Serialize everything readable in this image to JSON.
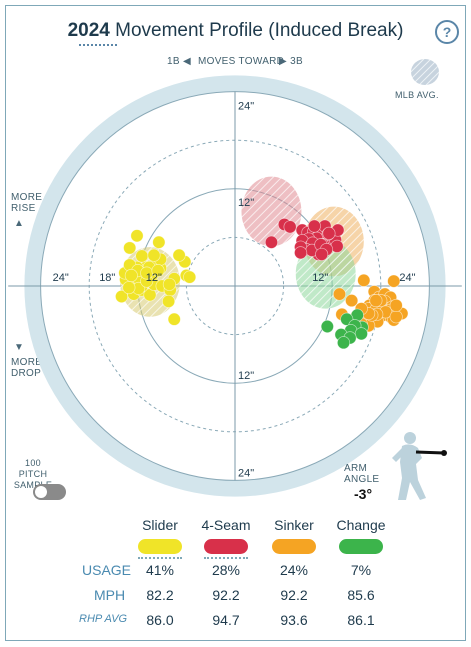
{
  "header": {
    "year": "2024",
    "title": "Movement Profile (Induced Break)",
    "help_glyph": "?"
  },
  "direction": {
    "left_label": "1B",
    "center_label": "MOVES TOWARD",
    "right_label": "3B",
    "left_arrow": "◀",
    "right_arrow": "▶"
  },
  "side_labels": {
    "more_rise_1": "MORE",
    "more_rise_2": "RISE",
    "up_arrow": "▲",
    "down_arrow": "▼",
    "more_drop_1": "MORE",
    "more_drop_2": "DROP"
  },
  "mlb_avg_label": "MLB AVG.",
  "sample_toggle": {
    "label_1": "100 PITCH",
    "label_2": "SAMPLE",
    "on": false
  },
  "arm_angle": {
    "label_1": "ARM",
    "label_2": "ANGLE",
    "value": "-3°"
  },
  "chart_data": {
    "type": "scatter",
    "title": "",
    "units": "inches",
    "ring_labels": {
      "top_outer": "24\"",
      "top_inner": "12\"",
      "bottom_inner": "12\"",
      "bottom_outer": "24\"",
      "left_outer": "24\"",
      "left_mid": "18\"",
      "left_inner": "12\"",
      "right_inner": "12\"",
      "right_outer": "24\""
    },
    "series": [
      {
        "name": "Slider",
        "color": "#f0e428",
        "avg_color": "#d7c970",
        "mlb_avg": {
          "x": -10.5,
          "y": 0.5
        },
        "points": [
          [
            -14,
            -1.3
          ],
          [
            -12.5,
            -1
          ],
          [
            -11.5,
            -0.5
          ],
          [
            -10.5,
            -1.1
          ],
          [
            -12.9,
            0.3
          ],
          [
            -11.5,
            0
          ],
          [
            -10,
            0.2
          ],
          [
            -9,
            0
          ],
          [
            -8,
            -0.5
          ],
          [
            -13.5,
            0.8
          ],
          [
            -12,
            1
          ],
          [
            -10.2,
            1.4
          ],
          [
            -11,
            2.3
          ],
          [
            -9.2,
            2.2
          ],
          [
            -13,
            1.8
          ],
          [
            -7.5,
            0.9
          ],
          [
            -6,
            1.3
          ],
          [
            -8.2,
            -1.9
          ],
          [
            -7.5,
            -4.1
          ],
          [
            -13.6,
            1.6
          ],
          [
            -9.8,
            2.8
          ],
          [
            -12.1,
            2.3
          ],
          [
            -13,
            2.6
          ],
          [
            -10.6,
            2.3
          ],
          [
            -13,
            4.7
          ],
          [
            -11.5,
            3.7
          ],
          [
            -9.2,
            3.3
          ],
          [
            -6.2,
            3
          ],
          [
            -10,
            3.8
          ],
          [
            -12.1,
            6.2
          ],
          [
            -9.4,
            5.4
          ],
          [
            -6.9,
            3.8
          ],
          [
            -5.6,
            1.1
          ],
          [
            -8.1,
            0.2
          ],
          [
            -11.9,
            -0.3
          ],
          [
            -13.1,
            -0.2
          ],
          [
            -10.9,
            0.6
          ],
          [
            -12,
            1.9
          ],
          [
            -10.9,
            1.6
          ],
          [
            -12.8,
            1.3
          ],
          [
            -9.5,
            1.9
          ]
        ]
      },
      {
        "name": "4-Seam",
        "color": "#d8304a",
        "avg_color": "#e08a92",
        "mlb_avg": {
          "x": 4.5,
          "y": 9.2
        },
        "points": [
          [
            6.1,
            7.6
          ],
          [
            6.8,
            7.3
          ],
          [
            8.3,
            6.9
          ],
          [
            9,
            6.6
          ],
          [
            9.7,
            6.7
          ],
          [
            10.4,
            6.9
          ],
          [
            11.1,
            7.4
          ],
          [
            10.1,
            5.9
          ],
          [
            9.1,
            5.8
          ],
          [
            8.3,
            5.6
          ],
          [
            9.4,
            5
          ],
          [
            10,
            4.8
          ],
          [
            11.1,
            4.9
          ],
          [
            11.9,
            5.7
          ],
          [
            12.4,
            5.7
          ],
          [
            11.5,
            6.4
          ],
          [
            10.8,
            5.1
          ],
          [
            9.6,
            5.3
          ],
          [
            8.8,
            4.5
          ],
          [
            8.1,
            4.8
          ],
          [
            10.3,
            3.9
          ],
          [
            12.7,
            6.9
          ],
          [
            11.6,
            6.5
          ],
          [
            9.5,
            4.4
          ],
          [
            4.5,
            5.4
          ],
          [
            8.1,
            4.1
          ],
          [
            10.6,
            5.1
          ],
          [
            12.6,
            4.9
          ],
          [
            11.3,
            4.5
          ],
          [
            10.7,
            3.9
          ],
          [
            9.8,
            7.4
          ]
        ]
      },
      {
        "name": "Sinker",
        "color": "#f5a423",
        "avg_color": "#efb060",
        "mlb_avg": {
          "x": 12.2,
          "y": 5.5
        },
        "points": [
          [
            15.9,
            0.7
          ],
          [
            19.6,
            0.6
          ],
          [
            12.9,
            -1
          ],
          [
            17.2,
            -0.7
          ],
          [
            17.8,
            -1.4
          ],
          [
            18.5,
            -1
          ],
          [
            19.2,
            -1.4
          ],
          [
            17.2,
            -1.8
          ],
          [
            14.4,
            -1.8
          ],
          [
            16.6,
            -2.4
          ],
          [
            17.3,
            -2.3
          ],
          [
            18.5,
            -1.9
          ],
          [
            16.5,
            -2.8
          ],
          [
            17.4,
            -2.9
          ],
          [
            18.3,
            -2.6
          ],
          [
            19.4,
            -2.6
          ],
          [
            15.8,
            -3.4
          ],
          [
            18.3,
            -3.6
          ],
          [
            20.6,
            -3.4
          ],
          [
            19.3,
            -3.9
          ],
          [
            16.5,
            -4.2
          ],
          [
            17.6,
            -4.4
          ],
          [
            19.6,
            -4.2
          ],
          [
            15,
            -3.7
          ],
          [
            16.5,
            -4.9
          ],
          [
            14.9,
            -5.7
          ],
          [
            18,
            -1.8
          ],
          [
            19.1,
            -3
          ],
          [
            17.4,
            -1.8
          ],
          [
            18.6,
            -3.2
          ],
          [
            15.6,
            -4.7
          ],
          [
            17.5,
            -3.5
          ],
          [
            16.9,
            -3.6
          ],
          [
            19.9,
            -3.8
          ],
          [
            16.5,
            -3.4
          ],
          [
            15.6,
            -2.8
          ],
          [
            19.9,
            -2.4
          ],
          [
            13.2,
            -3.5
          ]
        ]
      },
      {
        "name": "Change",
        "color": "#3cb44b",
        "avg_color": "#8cd69a",
        "mlb_avg": {
          "x": 11.2,
          "y": 1.5
        },
        "points": [
          [
            15.1,
            -3.6
          ],
          [
            13.8,
            -4.1
          ],
          [
            15.7,
            -5.1
          ],
          [
            14.8,
            -4.9
          ],
          [
            14.3,
            -5.5
          ],
          [
            13.1,
            -6
          ],
          [
            11.4,
            -5
          ],
          [
            15.6,
            -5.9
          ],
          [
            14.2,
            -6.4
          ],
          [
            13.4,
            -7
          ]
        ]
      }
    ]
  },
  "legend": {
    "pitches": [
      {
        "name": "Slider",
        "color": "#f0e428",
        "usage": "41%",
        "mph": "82.2",
        "rhp_avg": "86.0"
      },
      {
        "name": "4-Seam",
        "color": "#d8304a",
        "usage": "28%",
        "mph": "92.2",
        "rhp_avg": "94.7"
      },
      {
        "name": "Sinker",
        "color": "#f5a423",
        "usage": "24%",
        "mph": "92.2",
        "rhp_avg": "93.6"
      },
      {
        "name": "Change",
        "color": "#3cb44b",
        "usage": "7%",
        "mph": "85.6",
        "rhp_avg": "86.1"
      }
    ],
    "row_labels": {
      "usage": "USAGE",
      "mph": "MPH",
      "rhp_avg": "RHP AVG"
    }
  }
}
